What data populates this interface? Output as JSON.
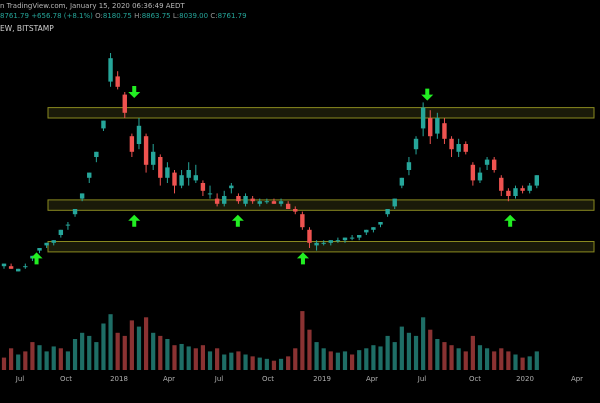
{
  "header": {
    "line1": "n TradingView.com, January 15, 2020 06:36:49 AEDT",
    "ohlc": [
      {
        "k": "",
        "v": "8761.79"
      },
      {
        "k": "",
        "v": "+656.78 (+8.1%)"
      },
      {
        "k": "O:",
        "v": "8180.75"
      },
      {
        "k": "H:",
        "v": "8863.75"
      },
      {
        "k": "L:",
        "v": "8039.00"
      },
      {
        "k": "C:",
        "v": "8761.79"
      }
    ],
    "line3": "EW, BITSTAMP"
  },
  "colors": {
    "background": "#000000",
    "up": "#26a69a",
    "down": "#ef5350",
    "volume_up": "#1e6e66",
    "volume_down": "#8a3232",
    "zone_stroke": "#8a8a20",
    "zone_fill": "#3a3a14",
    "arrow": "#22ee22",
    "axis_text": "#b0b0b0"
  },
  "chart_data": {
    "type": "candlestick",
    "timeframe": "weekly",
    "x_axis_ticks": [
      "Jul",
      "Oct",
      "2018",
      "Apr",
      "Jul",
      "Oct",
      "2019",
      "Apr",
      "Jul",
      "Oct",
      "2020",
      "Apr"
    ],
    "y_range": [
      0.0,
      1.0
    ],
    "zones": [
      {
        "y_top": 0.74,
        "y_bottom": 0.7
      },
      {
        "y_top": 0.385,
        "y_bottom": 0.345
      },
      {
        "y_top": 0.225,
        "y_bottom": 0.185
      }
    ],
    "arrows": [
      {
        "dir": "up",
        "x": 0.055,
        "y": 0.16
      },
      {
        "dir": "down",
        "x": 0.22,
        "y": 0.8
      },
      {
        "dir": "up",
        "x": 0.22,
        "y": 0.305
      },
      {
        "dir": "up",
        "x": 0.395,
        "y": 0.305
      },
      {
        "dir": "up",
        "x": 0.505,
        "y": 0.16
      },
      {
        "dir": "down",
        "x": 0.715,
        "y": 0.79
      },
      {
        "dir": "up",
        "x": 0.855,
        "y": 0.305
      }
    ],
    "candles": [
      [
        0.0,
        0.13,
        0.14,
        0.12,
        0.14
      ],
      [
        0.012,
        0.13,
        0.14,
        0.12,
        0.12
      ],
      [
        0.024,
        0.11,
        0.12,
        0.11,
        0.12
      ],
      [
        0.036,
        0.13,
        0.14,
        0.12,
        0.13
      ],
      [
        0.048,
        0.16,
        0.17,
        0.15,
        0.17
      ],
      [
        0.06,
        0.19,
        0.2,
        0.18,
        0.2
      ],
      [
        0.072,
        0.21,
        0.22,
        0.2,
        0.22
      ],
      [
        0.084,
        0.22,
        0.23,
        0.21,
        0.23
      ],
      [
        0.096,
        0.25,
        0.27,
        0.24,
        0.27
      ],
      [
        0.108,
        0.29,
        0.3,
        0.27,
        0.29
      ],
      [
        0.12,
        0.33,
        0.35,
        0.32,
        0.35
      ],
      [
        0.132,
        0.39,
        0.41,
        0.38,
        0.41
      ],
      [
        0.144,
        0.47,
        0.49,
        0.45,
        0.49
      ],
      [
        0.156,
        0.55,
        0.57,
        0.53,
        0.57
      ],
      [
        0.168,
        0.66,
        0.69,
        0.65,
        0.69
      ],
      [
        0.18,
        0.84,
        0.95,
        0.82,
        0.93
      ],
      [
        0.192,
        0.86,
        0.88,
        0.81,
        0.82
      ],
      [
        0.204,
        0.79,
        0.8,
        0.7,
        0.72
      ],
      [
        0.216,
        0.63,
        0.64,
        0.55,
        0.57
      ],
      [
        0.228,
        0.6,
        0.7,
        0.58,
        0.67
      ],
      [
        0.24,
        0.63,
        0.64,
        0.49,
        0.52
      ],
      [
        0.252,
        0.52,
        0.6,
        0.5,
        0.57
      ],
      [
        0.264,
        0.55,
        0.56,
        0.44,
        0.47
      ],
      [
        0.276,
        0.47,
        0.53,
        0.45,
        0.51
      ],
      [
        0.288,
        0.49,
        0.5,
        0.41,
        0.44
      ],
      [
        0.3,
        0.44,
        0.5,
        0.43,
        0.48
      ],
      [
        0.312,
        0.47,
        0.53,
        0.44,
        0.5
      ],
      [
        0.324,
        0.46,
        0.52,
        0.45,
        0.48
      ],
      [
        0.336,
        0.45,
        0.46,
        0.4,
        0.42
      ],
      [
        0.348,
        0.41,
        0.44,
        0.39,
        0.41
      ],
      [
        0.36,
        0.39,
        0.41,
        0.36,
        0.37
      ],
      [
        0.372,
        0.37,
        0.42,
        0.36,
        0.4
      ],
      [
        0.384,
        0.43,
        0.45,
        0.41,
        0.44
      ],
      [
        0.396,
        0.4,
        0.41,
        0.37,
        0.38
      ],
      [
        0.408,
        0.37,
        0.41,
        0.36,
        0.4
      ],
      [
        0.42,
        0.39,
        0.4,
        0.37,
        0.38
      ],
      [
        0.432,
        0.37,
        0.39,
        0.36,
        0.38
      ],
      [
        0.444,
        0.38,
        0.39,
        0.37,
        0.38
      ],
      [
        0.456,
        0.38,
        0.39,
        0.37,
        0.37
      ],
      [
        0.468,
        0.37,
        0.39,
        0.36,
        0.38
      ],
      [
        0.48,
        0.37,
        0.38,
        0.35,
        0.35
      ],
      [
        0.492,
        0.35,
        0.36,
        0.33,
        0.34
      ],
      [
        0.504,
        0.33,
        0.34,
        0.27,
        0.28
      ],
      [
        0.516,
        0.27,
        0.28,
        0.2,
        0.22
      ],
      [
        0.528,
        0.21,
        0.23,
        0.19,
        0.22
      ],
      [
        0.54,
        0.22,
        0.23,
        0.21,
        0.22
      ],
      [
        0.552,
        0.22,
        0.23,
        0.21,
        0.23
      ],
      [
        0.564,
        0.23,
        0.24,
        0.22,
        0.23
      ],
      [
        0.576,
        0.23,
        0.24,
        0.22,
        0.24
      ],
      [
        0.588,
        0.24,
        0.25,
        0.23,
        0.24
      ],
      [
        0.6,
        0.24,
        0.25,
        0.23,
        0.25
      ],
      [
        0.612,
        0.26,
        0.27,
        0.25,
        0.27
      ],
      [
        0.624,
        0.27,
        0.28,
        0.26,
        0.28
      ],
      [
        0.636,
        0.29,
        0.3,
        0.28,
        0.3
      ],
      [
        0.648,
        0.33,
        0.35,
        0.32,
        0.35
      ],
      [
        0.66,
        0.36,
        0.39,
        0.35,
        0.39
      ],
      [
        0.672,
        0.44,
        0.47,
        0.43,
        0.47
      ],
      [
        0.684,
        0.5,
        0.55,
        0.48,
        0.53
      ],
      [
        0.696,
        0.58,
        0.63,
        0.56,
        0.62
      ],
      [
        0.708,
        0.66,
        0.76,
        0.63,
        0.74
      ],
      [
        0.72,
        0.7,
        0.73,
        0.6,
        0.63
      ],
      [
        0.732,
        0.64,
        0.72,
        0.62,
        0.7
      ],
      [
        0.744,
        0.68,
        0.7,
        0.6,
        0.62
      ],
      [
        0.756,
        0.62,
        0.63,
        0.55,
        0.58
      ],
      [
        0.768,
        0.57,
        0.62,
        0.55,
        0.6
      ],
      [
        0.78,
        0.6,
        0.61,
        0.56,
        0.57
      ],
      [
        0.792,
        0.52,
        0.53,
        0.44,
        0.46
      ],
      [
        0.804,
        0.46,
        0.51,
        0.45,
        0.49
      ],
      [
        0.816,
        0.52,
        0.55,
        0.5,
        0.54
      ],
      [
        0.828,
        0.54,
        0.55,
        0.49,
        0.5
      ],
      [
        0.84,
        0.47,
        0.48,
        0.4,
        0.42
      ],
      [
        0.852,
        0.42,
        0.43,
        0.38,
        0.4
      ],
      [
        0.864,
        0.4,
        0.44,
        0.39,
        0.43
      ],
      [
        0.876,
        0.43,
        0.44,
        0.41,
        0.42
      ],
      [
        0.888,
        0.42,
        0.45,
        0.41,
        0.44
      ],
      [
        0.9,
        0.44,
        0.48,
        0.43,
        0.48
      ]
    ],
    "volumes": [
      [
        0.0,
        0.2,
        0
      ],
      [
        0.012,
        0.35,
        0
      ],
      [
        0.024,
        0.25,
        1
      ],
      [
        0.036,
        0.3,
        0
      ],
      [
        0.048,
        0.45,
        0
      ],
      [
        0.06,
        0.4,
        1
      ],
      [
        0.072,
        0.3,
        1
      ],
      [
        0.084,
        0.38,
        1
      ],
      [
        0.096,
        0.35,
        0
      ],
      [
        0.108,
        0.3,
        1
      ],
      [
        0.12,
        0.5,
        1
      ],
      [
        0.132,
        0.6,
        1
      ],
      [
        0.144,
        0.55,
        1
      ],
      [
        0.156,
        0.45,
        1
      ],
      [
        0.168,
        0.75,
        1
      ],
      [
        0.18,
        0.9,
        1
      ],
      [
        0.192,
        0.6,
        0
      ],
      [
        0.204,
        0.55,
        0
      ],
      [
        0.216,
        0.8,
        0
      ],
      [
        0.228,
        0.7,
        1
      ],
      [
        0.24,
        0.85,
        0
      ],
      [
        0.252,
        0.6,
        1
      ],
      [
        0.264,
        0.55,
        0
      ],
      [
        0.276,
        0.5,
        1
      ],
      [
        0.288,
        0.4,
        0
      ],
      [
        0.3,
        0.42,
        1
      ],
      [
        0.312,
        0.38,
        1
      ],
      [
        0.324,
        0.35,
        0
      ],
      [
        0.336,
        0.4,
        0
      ],
      [
        0.348,
        0.3,
        1
      ],
      [
        0.36,
        0.35,
        0
      ],
      [
        0.372,
        0.25,
        1
      ],
      [
        0.384,
        0.28,
        1
      ],
      [
        0.396,
        0.3,
        0
      ],
      [
        0.408,
        0.25,
        1
      ],
      [
        0.42,
        0.22,
        0
      ],
      [
        0.432,
        0.2,
        1
      ],
      [
        0.444,
        0.18,
        1
      ],
      [
        0.456,
        0.15,
        0
      ],
      [
        0.468,
        0.18,
        1
      ],
      [
        0.48,
        0.22,
        0
      ],
      [
        0.492,
        0.35,
        0
      ],
      [
        0.504,
        0.95,
        0
      ],
      [
        0.516,
        0.65,
        0
      ],
      [
        0.528,
        0.45,
        1
      ],
      [
        0.54,
        0.35,
        1
      ],
      [
        0.552,
        0.3,
        0
      ],
      [
        0.564,
        0.28,
        1
      ],
      [
        0.576,
        0.3,
        1
      ],
      [
        0.588,
        0.25,
        0
      ],
      [
        0.6,
        0.32,
        1
      ],
      [
        0.612,
        0.35,
        1
      ],
      [
        0.624,
        0.4,
        1
      ],
      [
        0.636,
        0.38,
        1
      ],
      [
        0.648,
        0.55,
        1
      ],
      [
        0.66,
        0.45,
        1
      ],
      [
        0.672,
        0.7,
        1
      ],
      [
        0.684,
        0.6,
        1
      ],
      [
        0.696,
        0.55,
        1
      ],
      [
        0.708,
        0.85,
        1
      ],
      [
        0.72,
        0.65,
        0
      ],
      [
        0.732,
        0.5,
        1
      ],
      [
        0.744,
        0.45,
        0
      ],
      [
        0.756,
        0.4,
        0
      ],
      [
        0.768,
        0.35,
        1
      ],
      [
        0.78,
        0.3,
        0
      ],
      [
        0.792,
        0.55,
        0
      ],
      [
        0.804,
        0.4,
        1
      ],
      [
        0.816,
        0.35,
        1
      ],
      [
        0.828,
        0.3,
        0
      ],
      [
        0.84,
        0.35,
        0
      ],
      [
        0.852,
        0.3,
        0
      ],
      [
        0.864,
        0.25,
        1
      ],
      [
        0.876,
        0.2,
        0
      ],
      [
        0.888,
        0.22,
        1
      ],
      [
        0.9,
        0.3,
        1
      ]
    ]
  }
}
